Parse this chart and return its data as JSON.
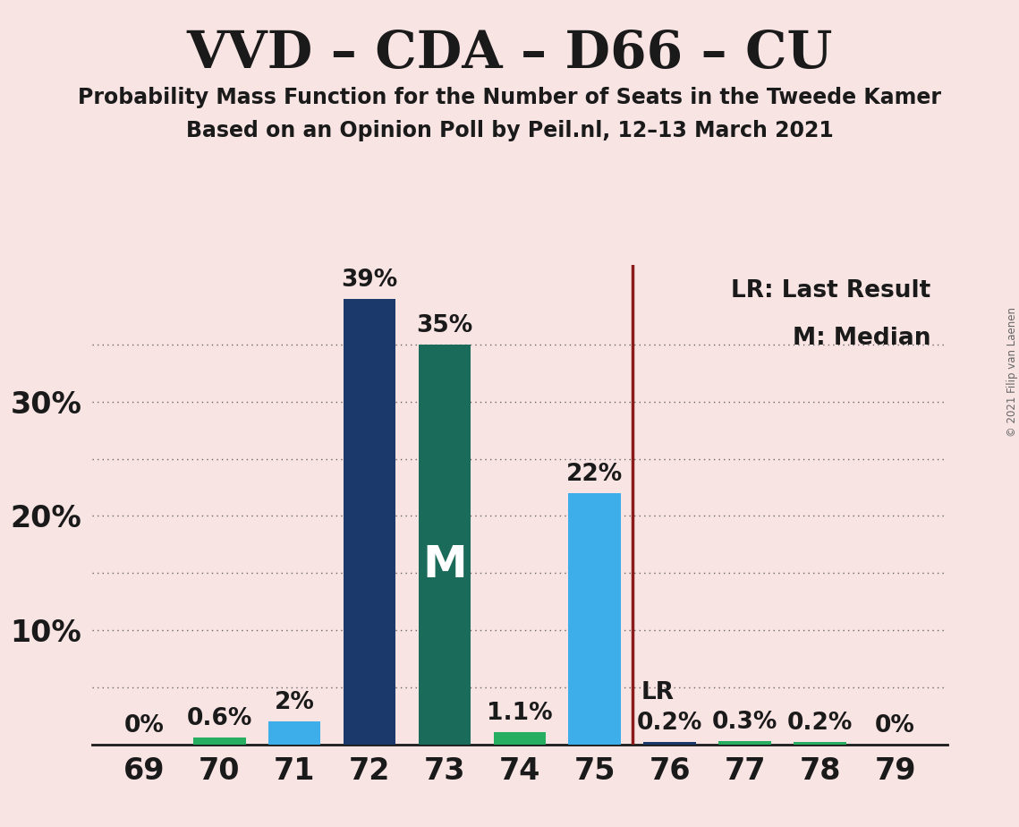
{
  "title": "VVD – CDA – D66 – CU",
  "subtitle1": "Probability Mass Function for the Number of Seats in the Tweede Kamer",
  "subtitle2": "Based on an Opinion Poll by Peil.nl, 12–13 March 2021",
  "copyright": "© 2021 Filip van Laenen",
  "seats": [
    69,
    70,
    71,
    72,
    73,
    74,
    75,
    76,
    77,
    78,
    79
  ],
  "values": [
    0.0,
    0.6,
    2.0,
    39.0,
    35.0,
    1.1,
    22.0,
    0.2,
    0.3,
    0.2,
    0.0
  ],
  "labels": [
    "0%",
    "0.6%",
    "2%",
    "39%",
    "35%",
    "1.1%",
    "22%",
    "0.2%",
    "0.3%",
    "0.2%",
    "0%"
  ],
  "background_color": "#f9e4e4",
  "median_seat": 73,
  "last_result_seat": 75.5,
  "ylim": [
    0,
    42
  ],
  "dotted_yticks": [
    5,
    10,
    15,
    20,
    25,
    30,
    35
  ],
  "title_color": "#1a1a1a",
  "bar_width": 0.7,
  "median_label": "M",
  "lr_line_color": "#8b1a1a",
  "legend_text1": "LR: Last Result",
  "legend_text2": "M: Median"
}
